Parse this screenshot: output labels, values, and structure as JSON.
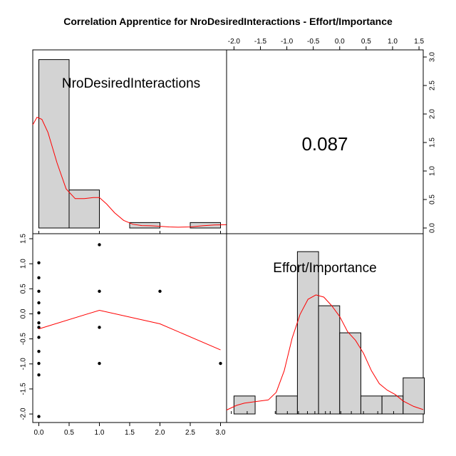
{
  "chart_data": {
    "type": "scatter-matrix",
    "title": "Correlation Apprentice for NroDesiredInteractions - Effort/Importance",
    "variables": [
      "NroDesiredInteractions",
      "Effort/Importance"
    ],
    "correlation_label": "0.087",
    "x_ticks_var1": [
      0,
      0.5,
      1,
      1.5,
      2,
      2.5,
      3
    ],
    "x_tick_labels_var1": [
      "0.0",
      "0.5",
      "1.0",
      "1.5",
      "2.0",
      "2.5",
      "3.0"
    ],
    "x_ticks_var2": [
      -2,
      -1.5,
      -1,
      -0.5,
      0,
      0.5,
      1,
      1.5
    ],
    "x_tick_labels_var2": [
      "-2.0",
      "-1.5",
      "-1.0",
      "-0.5",
      "0.0",
      "0.5",
      "1.0",
      "1.5"
    ],
    "y_ticks_right": [
      0,
      0.5,
      1,
      1.5,
      2,
      2.5,
      3
    ],
    "y_tick_labels_right": [
      "0.0",
      "0.5",
      "1.0",
      "1.5",
      "2.0",
      "2.5",
      "3.0"
    ],
    "y_ticks_left": [
      -2,
      -1.5,
      -1,
      -0.5,
      0,
      0.5,
      1,
      1.5
    ],
    "y_tick_labels_left": [
      "-2.0",
      "-1.5",
      "-1.0",
      "-0.5",
      "0.0",
      "0.5",
      "1.0",
      "1.5"
    ],
    "xlim_var1": [
      -0.1,
      3.1
    ],
    "xlim_var2": [
      -2.14,
      1.58
    ],
    "ylim_scatter": [
      -2.17,
      1.6
    ],
    "hist_var1": {
      "breaks": [
        0,
        0.5,
        1,
        1.5,
        2,
        2.5,
        3
      ],
      "density": [
        1.55,
        0.35,
        0,
        0.05,
        0,
        0.05
      ],
      "ymax": 1.6
    },
    "density_var1": [
      [
        -0.1,
        0.95
      ],
      [
        -0.03,
        1.02
      ],
      [
        0.05,
        1.0
      ],
      [
        0.15,
        0.88
      ],
      [
        0.3,
        0.6
      ],
      [
        0.45,
        0.36
      ],
      [
        0.6,
        0.27
      ],
      [
        0.75,
        0.27
      ],
      [
        0.9,
        0.28
      ],
      [
        1.0,
        0.28
      ],
      [
        1.12,
        0.22
      ],
      [
        1.25,
        0.14
      ],
      [
        1.4,
        0.07
      ],
      [
        1.55,
        0.035
      ],
      [
        1.7,
        0.022
      ],
      [
        1.85,
        0.02
      ],
      [
        2.0,
        0.016
      ],
      [
        2.15,
        0.01
      ],
      [
        2.3,
        0.007
      ],
      [
        2.5,
        0.01
      ],
      [
        2.7,
        0.02
      ],
      [
        2.9,
        0.028
      ],
      [
        3.1,
        0.03
      ]
    ],
    "rug_var1": [
      0,
      1,
      2,
      3
    ],
    "hist_var2": {
      "breaks": [
        -2,
        -1.6,
        -1.2,
        -0.8,
        -0.4,
        0,
        0.4,
        0.8,
        1.2,
        1.6
      ],
      "density": [
        0.083,
        0,
        0.083,
        0.75,
        0.5,
        0.375,
        0.083,
        0.083,
        0.167
      ],
      "ymax": 0.8
    },
    "density_var2": [
      [
        -2.14,
        0.018
      ],
      [
        -1.95,
        0.04
      ],
      [
        -1.8,
        0.05
      ],
      [
        -1.65,
        0.055
      ],
      [
        -1.5,
        0.06
      ],
      [
        -1.35,
        0.065
      ],
      [
        -1.2,
        0.1
      ],
      [
        -1.05,
        0.2
      ],
      [
        -0.9,
        0.35
      ],
      [
        -0.75,
        0.46
      ],
      [
        -0.6,
        0.53
      ],
      [
        -0.45,
        0.55
      ],
      [
        -0.3,
        0.54
      ],
      [
        -0.15,
        0.5
      ],
      [
        0.0,
        0.45
      ],
      [
        0.15,
        0.38
      ],
      [
        0.3,
        0.34
      ],
      [
        0.45,
        0.28
      ],
      [
        0.6,
        0.2
      ],
      [
        0.75,
        0.14
      ],
      [
        0.9,
        0.11
      ],
      [
        1.05,
        0.09
      ],
      [
        1.2,
        0.06
      ],
      [
        1.4,
        0.035
      ],
      [
        1.58,
        0.02
      ]
    ],
    "rug_var2": [
      -2.05,
      -1.75,
      -1.22,
      -0.99,
      -0.78,
      -0.61,
      -0.47,
      -0.27,
      -0.18,
      0.02,
      0.22,
      0.45,
      0.72,
      1.02
    ],
    "scatter_points": [
      [
        0,
        1.02
      ],
      [
        0,
        0.72
      ],
      [
        0,
        0.45
      ],
      [
        0,
        0.22
      ],
      [
        0,
        0.02
      ],
      [
        0,
        -0.18
      ],
      [
        0,
        -0.27
      ],
      [
        0,
        -0.47
      ],
      [
        0,
        -0.75
      ],
      [
        0,
        -0.99
      ],
      [
        0,
        -1.22
      ],
      [
        0,
        -2.05
      ],
      [
        1,
        1.38
      ],
      [
        1,
        0.45
      ],
      [
        1,
        -0.27
      ],
      [
        1,
        -0.99
      ],
      [
        2,
        0.45
      ],
      [
        3,
        -0.99
      ]
    ],
    "smooth_line": [
      [
        0,
        -0.3
      ],
      [
        1,
        0.07
      ],
      [
        2,
        -0.2
      ],
      [
        3,
        -0.72
      ]
    ]
  }
}
